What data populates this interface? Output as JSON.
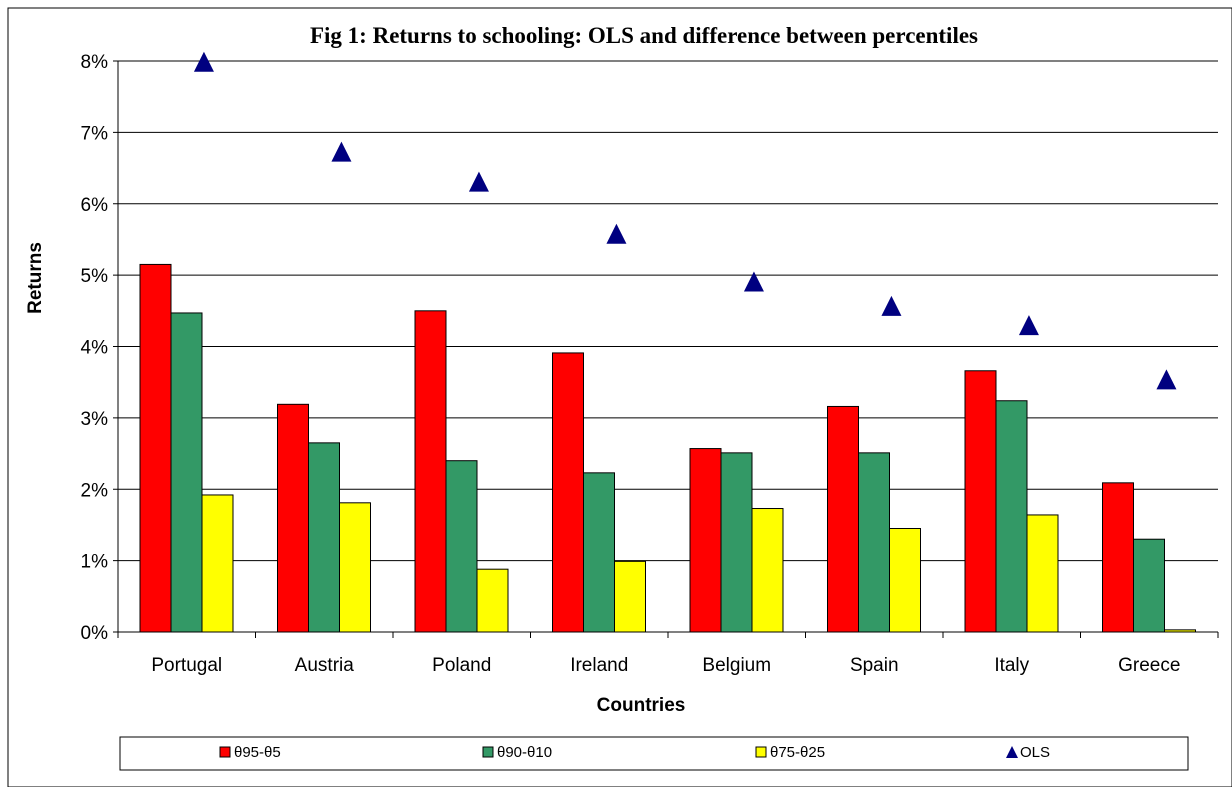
{
  "chart_data": {
    "type": "bar",
    "title": "Fig 1: Returns to schooling: OLS and difference between percentiles",
    "xlabel": "Countries",
    "ylabel": "Returns",
    "ylim": [
      0,
      8
    ],
    "y_tick_labels": [
      "0%",
      "1%",
      "2%",
      "3%",
      "4%",
      "5%",
      "6%",
      "7%",
      "8%"
    ],
    "grid": true,
    "legend_position": "bottom",
    "categories": [
      "Portugal",
      "Austria",
      "Poland",
      "Ireland",
      "Belgium",
      "Spain",
      "Italy",
      "Greece"
    ],
    "series": [
      {
        "name": "θ95-θ5",
        "kind": "bar",
        "color": "#ff0000",
        "values": [
          5.15,
          3.19,
          4.5,
          3.91,
          2.57,
          3.16,
          3.66,
          2.09
        ]
      },
      {
        "name": "θ90-θ10",
        "kind": "bar",
        "color": "#339966",
        "values": [
          4.47,
          2.65,
          2.4,
          2.23,
          2.51,
          2.51,
          3.24,
          1.3
        ]
      },
      {
        "name": "θ75-θ25",
        "kind": "bar",
        "color": "#ffff00",
        "values": [
          1.92,
          1.81,
          0.88,
          0.99,
          1.73,
          1.45,
          1.64,
          0.03
        ]
      },
      {
        "name": "OLS",
        "kind": "marker",
        "marker": "triangle",
        "color": "#000080",
        "values": [
          7.99,
          6.73,
          6.31,
          5.58,
          4.91,
          4.57,
          4.3,
          3.54
        ]
      }
    ]
  }
}
